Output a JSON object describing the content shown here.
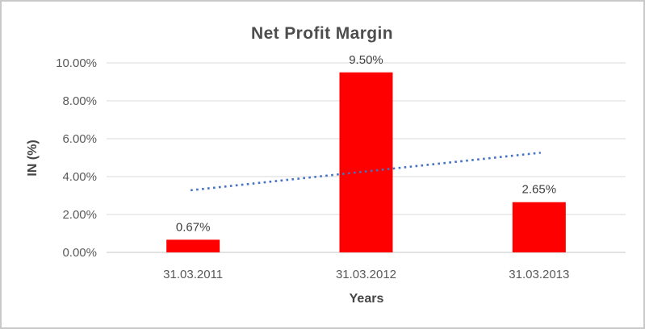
{
  "chart": {
    "background": "#FFFFFF",
    "border_color": "#C9C9C9"
  },
  "chart_data": {
    "type": "bar",
    "title": "Net Profit Margin",
    "xlabel": "Years",
    "ylabel": "IN (%)",
    "categories": [
      "31.03.2011",
      "31.03.2012",
      "31.03.2013"
    ],
    "series": [
      {
        "name": "Net Profit Margin",
        "values": [
          0.67,
          9.5,
          2.65
        ]
      }
    ],
    "data_labels": [
      "0.67%",
      "9.50%",
      "2.65%"
    ],
    "y_ticks": [
      {
        "value": 0,
        "label": "0.00%"
      },
      {
        "value": 2,
        "label": "2.00%"
      },
      {
        "value": 4,
        "label": "4.00%"
      },
      {
        "value": 6,
        "label": "6.00%"
      },
      {
        "value": 8,
        "label": "8.00%"
      },
      {
        "value": 10,
        "label": "10.00%"
      }
    ],
    "ylim": [
      0,
      10
    ],
    "grid": true,
    "legend": "none",
    "bar_color": "#FF0000",
    "trendline": {
      "type": "linear",
      "style": "dotted",
      "color": "#4472C4",
      "endpoints_pct": [
        3.28,
        5.26
      ]
    },
    "colors": {
      "title_text": "#4D4D4D",
      "axis_title_text": "#454545",
      "tick_text": "#595959",
      "data_label_text": "#404040",
      "gridline": "#D9D9D9",
      "axis_line": "#C6C6C6"
    }
  }
}
